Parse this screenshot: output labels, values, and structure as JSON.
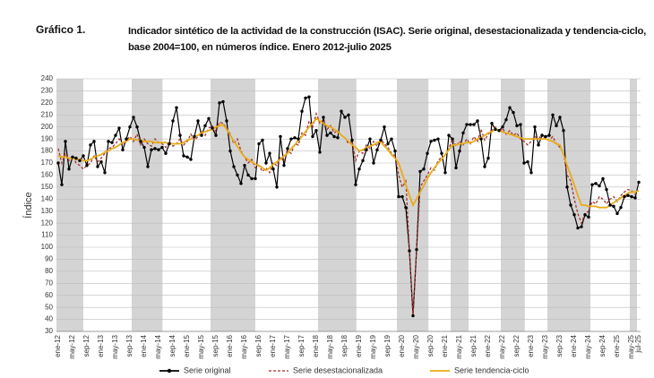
{
  "heading": "Gráfico 1.",
  "chart_data": {
    "type": "line",
    "title": "Indicador sintético de la actividad de la construcción (ISAC). Serie original, desestacionalizada y tendencia-ciclo, base 2004=100, en números índice. Enero 2012-julio 2025",
    "ylabel": "Índice",
    "ylim": [
      30,
      240
    ],
    "yticks": [
      30,
      40,
      50,
      60,
      70,
      80,
      90,
      100,
      110,
      120,
      130,
      140,
      150,
      160,
      170,
      180,
      190,
      200,
      210,
      220,
      230,
      240
    ],
    "grid": true,
    "legend": "bottom",
    "categories": [
      "ene-12",
      null,
      null,
      null,
      "may-12",
      null,
      null,
      null,
      "sep-12",
      null,
      null,
      null,
      "ene-13",
      null,
      null,
      null,
      "may-13",
      null,
      null,
      null,
      "sep-13",
      null,
      null,
      null,
      "ene-14",
      null,
      null,
      null,
      "may-14",
      null,
      null,
      null,
      "sep-14",
      null,
      null,
      null,
      "ene-15",
      null,
      null,
      null,
      "may-15",
      null,
      null,
      null,
      "sep-15",
      null,
      null,
      null,
      "ene-16",
      null,
      null,
      null,
      "may-16",
      null,
      null,
      null,
      "sep-16",
      null,
      null,
      null,
      "ene-17",
      null,
      null,
      null,
      "may-17",
      null,
      null,
      null,
      "sep-17",
      null,
      null,
      null,
      "ene-18",
      null,
      null,
      null,
      "may-18",
      null,
      null,
      null,
      "sep-18",
      null,
      null,
      null,
      "ene-19",
      null,
      null,
      null,
      "may-19",
      null,
      null,
      null,
      "sep-19",
      null,
      null,
      null,
      "ene-20",
      null,
      null,
      null,
      "may-20",
      null,
      null,
      null,
      "sep-20",
      null,
      null,
      null,
      "ene-21",
      null,
      null,
      null,
      "may-21",
      null,
      null,
      null,
      "sep-21",
      null,
      null,
      null,
      "ene-22",
      null,
      null,
      null,
      "may-22",
      null,
      null,
      null,
      "sep-22",
      null,
      null,
      null,
      "ene-23",
      null,
      null,
      null,
      "may-23",
      null,
      null,
      null,
      "sep-23",
      null,
      null,
      null,
      "ene-24",
      null,
      null,
      null,
      "may-24",
      null,
      null,
      null,
      "sep-24",
      null,
      null,
      null,
      "ene-25",
      null,
      null,
      null,
      "may-25",
      null,
      "jul-25"
    ],
    "series": [
      {
        "name": "Serie original",
        "color": "#000000",
        "style": "solid",
        "marker": true,
        "values": [
          170,
          152,
          188,
          165,
          175,
          174,
          172,
          176,
          168,
          185,
          188,
          167,
          171,
          162,
          188,
          187,
          193,
          199,
          181,
          190,
          200,
          208,
          200,
          188,
          183,
          167,
          181,
          182,
          181,
          183,
          178,
          186,
          205,
          216,
          193,
          176,
          175,
          173,
          192,
          205,
          193,
          201,
          207,
          199,
          193,
          220,
          221,
          205,
          180,
          167,
          160,
          153,
          168,
          160,
          157,
          157,
          186,
          189,
          170,
          178,
          165,
          150,
          192,
          168,
          182,
          190,
          191,
          190,
          213,
          224,
          225,
          192,
          197,
          179,
          208,
          193,
          195,
          192,
          191,
          213,
          208,
          210,
          189,
          152,
          165,
          172,
          181,
          190,
          170,
          181,
          189,
          200,
          186,
          190,
          180,
          142,
          142,
          133,
          97,
          43,
          98,
          163,
          165,
          178,
          188,
          189,
          190,
          178,
          162,
          193,
          190,
          166,
          180,
          195,
          202,
          202,
          202,
          205,
          190,
          167,
          174,
          203,
          198,
          197,
          200,
          206,
          216,
          212,
          201,
          202,
          170,
          171,
          162,
          200,
          185,
          193,
          192,
          193,
          210,
          201,
          208,
          197,
          150,
          135,
          127,
          116,
          117,
          127,
          125,
          152,
          153,
          151,
          157,
          148,
          135,
          134,
          128,
          133,
          142,
          143,
          142,
          141,
          154
        ]
      },
      {
        "name": "Serie desestacionalizada",
        "color": "#a5352c",
        "style": "dashed",
        "marker": false,
        "values": [
          182,
          170,
          178,
          172,
          176,
          170,
          168,
          165,
          168,
          170,
          176,
          171,
          174,
          178,
          182,
          183,
          186,
          190,
          186,
          189,
          192,
          188,
          194,
          185,
          190,
          186,
          184,
          190,
          187,
          186,
          183,
          188,
          184,
          186,
          190,
          185,
          188,
          194,
          189,
          192,
          196,
          193,
          199,
          201,
          196,
          204,
          203,
          199,
          194,
          186,
          190,
          180,
          175,
          170,
          173,
          166,
          168,
          163,
          166,
          162,
          170,
          168,
          175,
          171,
          180,
          178,
          186,
          185,
          195,
          193,
          205,
          200,
          211,
          203,
          206,
          198,
          201,
          195,
          197,
          193,
          191,
          186,
          188,
          172,
          180,
          178,
          185,
          182,
          188,
          184,
          190,
          186,
          183,
          178,
          176,
          160,
          150,
          155,
          98,
          44,
          98,
          150,
          155,
          160,
          166,
          164,
          172,
          175,
          176,
          182,
          190,
          184,
          188,
          185,
          190,
          186,
          192,
          188,
          198,
          189,
          194,
          197,
          200,
          196,
          199,
          194,
          197,
          193,
          195,
          190,
          188,
          185,
          188,
          192,
          190,
          194,
          190,
          189,
          192,
          186,
          183,
          178,
          160,
          155,
          140,
          128,
          120,
          128,
          130,
          138,
          136,
          142,
          140,
          136,
          140,
          142,
          138,
          143,
          146,
          148,
          147,
          144,
          145
        ]
      },
      {
        "name": "Serie tendencia-ciclo",
        "color": "#e8ab1a",
        "style": "solid",
        "marker": false,
        "values": [
          176,
          175,
          175,
          174,
          174,
          173,
          173,
          172,
          172,
          173,
          175,
          176,
          177,
          179,
          180,
          182,
          183,
          185,
          187,
          188,
          190,
          190,
          189,
          189,
          188,
          188,
          188,
          187,
          187,
          187,
          187,
          186,
          186,
          186,
          186,
          187,
          189,
          190,
          192,
          193,
          195,
          196,
          197,
          198,
          200,
          201,
          202,
          198,
          193,
          188,
          184,
          179,
          175,
          173,
          171,
          169,
          168,
          166,
          164,
          166,
          169,
          171,
          173,
          176,
          178,
          182,
          185,
          189,
          192,
          196,
          200,
          203,
          207,
          205,
          203,
          201,
          200,
          198,
          196,
          193,
          191,
          188,
          185,
          183,
          180,
          181,
          183,
          184,
          185,
          187,
          188,
          184,
          181,
          177,
          174,
          170,
          161,
          152,
          143,
          135,
          140,
          146,
          151,
          157,
          162,
          166,
          170,
          173,
          177,
          181,
          185,
          185,
          186,
          186,
          187,
          187,
          188,
          190,
          191,
          193,
          195,
          196,
          198,
          197,
          196,
          195,
          194,
          193,
          192,
          191,
          190,
          190,
          190,
          190,
          190,
          190,
          190,
          189,
          188,
          186,
          185,
          177,
          168,
          160,
          152,
          143,
          135,
          135,
          134,
          134,
          134,
          133,
          133,
          133,
          135,
          137,
          139,
          141,
          143,
          145,
          146,
          146,
          147
        ]
      }
    ]
  }
}
